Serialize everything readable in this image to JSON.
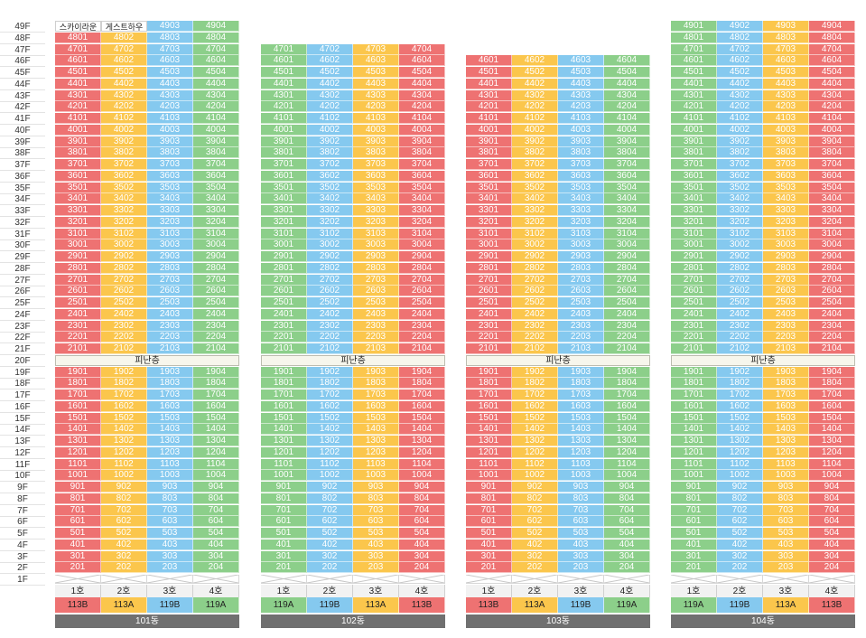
{
  "floor_axis": [
    "49F",
    "48F",
    "47F",
    "46F",
    "45F",
    "44F",
    "43F",
    "42F",
    "41F",
    "40F",
    "39F",
    "38F",
    "37F",
    "36F",
    "35F",
    "34F",
    "33F",
    "32F",
    "31F",
    "30F",
    "29F",
    "28F",
    "27F",
    "26F",
    "25F",
    "24F",
    "23F",
    "22F",
    "21F",
    "20F",
    "19F",
    "18F",
    "17F",
    "16F",
    "15F",
    "14F",
    "13F",
    "12F",
    "11F",
    "10F",
    "9F",
    "8F",
    "7F",
    "6F",
    "5F",
    "4F",
    "3F",
    "2F",
    "1F"
  ],
  "refuge_floor": 20,
  "refuge_label": "피난층",
  "unit_labels": [
    "1호",
    "2호",
    "3호",
    "4호"
  ],
  "colors": {
    "r": "#ee7272",
    "y": "#fbc64c",
    "b": "#85c9ef",
    "g": "#8ccf8a"
  },
  "buildings": [
    {
      "name": "101동",
      "top_floor": 49,
      "column_colors": [
        "r",
        "y",
        "b",
        "g"
      ],
      "types": [
        "113B",
        "113A",
        "119B",
        "119A"
      ],
      "special_cells": [
        {
          "floor": 49,
          "unit": 1,
          "text": "스카이라운지"
        },
        {
          "floor": 49,
          "unit": 2,
          "text": "게스트하우스"
        }
      ]
    },
    {
      "name": "102동",
      "top_floor": 47,
      "column_colors": [
        "g",
        "b",
        "y",
        "r"
      ],
      "types": [
        "119A",
        "119B",
        "113A",
        "113B"
      ],
      "special_cells": []
    },
    {
      "name": "103동",
      "top_floor": 46,
      "column_colors": [
        "r",
        "y",
        "b",
        "g"
      ],
      "types": [
        "113B",
        "113A",
        "119B",
        "119A"
      ],
      "special_cells": []
    },
    {
      "name": "104동",
      "top_floor": 49,
      "column_colors": [
        "g",
        "b",
        "y",
        "r"
      ],
      "types": [
        "119A",
        "119B",
        "113A",
        "113B"
      ],
      "special_cells": []
    }
  ]
}
